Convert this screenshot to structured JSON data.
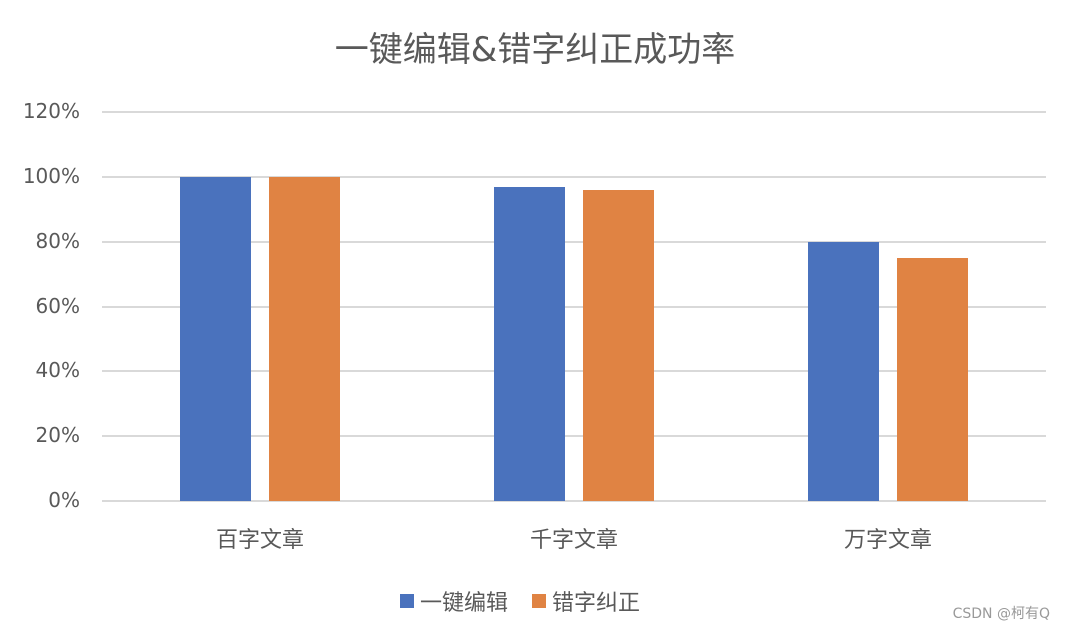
{
  "chart_data": {
    "type": "bar",
    "title": "一键编辑&错字纠正成功率",
    "categories": [
      "百字文章",
      "千字文章",
      "万字文章"
    ],
    "series": [
      {
        "name": "一键编辑",
        "values": [
          1.0,
          0.97,
          0.8
        ],
        "color": "#4a72bd"
      },
      {
        "name": "错字纠正",
        "values": [
          1.0,
          0.96,
          0.75
        ],
        "color": "#e08343"
      }
    ],
    "yticks": [
      "0%",
      "20%",
      "40%",
      "60%",
      "80%",
      "100%",
      "120%"
    ],
    "ylim": [
      0,
      1.2
    ],
    "grid": true,
    "legend": "bottom"
  },
  "watermark": "CSDN @柯有Q"
}
